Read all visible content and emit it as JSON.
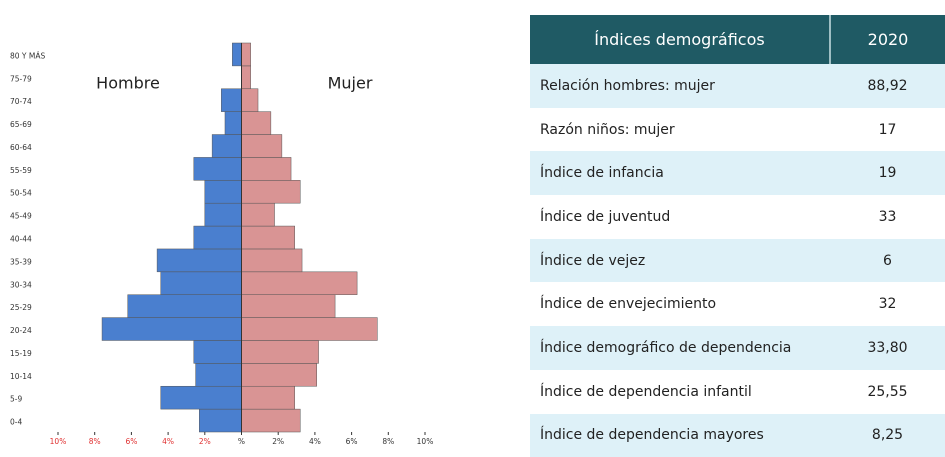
{
  "chart_data": {
    "type": "pyramid",
    "categories": [
      "0-4",
      "5-9",
      "10-14",
      "15-19",
      "20-24",
      "25-29",
      "30-34",
      "35-39",
      "40-44",
      "45-49",
      "50-54",
      "55-59",
      "60-64",
      "65-69",
      "70-74",
      "75-79",
      "80 Y MÁS"
    ],
    "series": [
      {
        "name": "Hombre",
        "color": "#4a7fcf",
        "side": "left",
        "values": [
          2.3,
          4.4,
          2.5,
          2.6,
          7.6,
          6.2,
          4.4,
          4.6,
          2.6,
          2.0,
          2.0,
          2.6,
          1.6,
          0.9,
          1.1,
          0,
          0.5
        ]
      },
      {
        "name": "Mujer",
        "color": "#d99494",
        "side": "right",
        "values": [
          3.2,
          2.9,
          4.1,
          4.2,
          7.4,
          5.1,
          6.3,
          3.3,
          2.9,
          1.8,
          3.2,
          2.7,
          2.2,
          1.6,
          0.9,
          0.5,
          0.5
        ]
      }
    ],
    "xlim": [
      -10,
      10
    ],
    "xticks": [
      {
        "value": -10,
        "label": "10%"
      },
      {
        "value": -8,
        "label": "8%"
      },
      {
        "value": -6,
        "label": "6%"
      },
      {
        "value": -4,
        "label": "4%"
      },
      {
        "value": -2,
        "label": "2%"
      },
      {
        "value": 0,
        "label": "%"
      },
      {
        "value": 2,
        "label": "2%"
      },
      {
        "value": 4,
        "label": "4%"
      },
      {
        "value": 6,
        "label": "6%"
      },
      {
        "value": 8,
        "label": "8%"
      },
      {
        "value": 10,
        "label": "10%"
      }
    ],
    "left_tick_color": "#e03030"
  },
  "table": {
    "header": [
      "Índices demográficos",
      "2020"
    ],
    "rows": [
      [
        "Relación hombres: mujer",
        "88,92"
      ],
      [
        "Razón niños: mujer",
        "17"
      ],
      [
        "Índice de infancia",
        "19"
      ],
      [
        "Índice de juventud",
        "33"
      ],
      [
        "Índice de vejez",
        "6"
      ],
      [
        "Índice de envejecimiento",
        "32"
      ],
      [
        "Índice demográfico de dependencia",
        "33,80"
      ],
      [
        "Índice de dependencia infantil",
        "25,55"
      ],
      [
        "Índice de dependencia mayores",
        "8,25"
      ]
    ]
  }
}
